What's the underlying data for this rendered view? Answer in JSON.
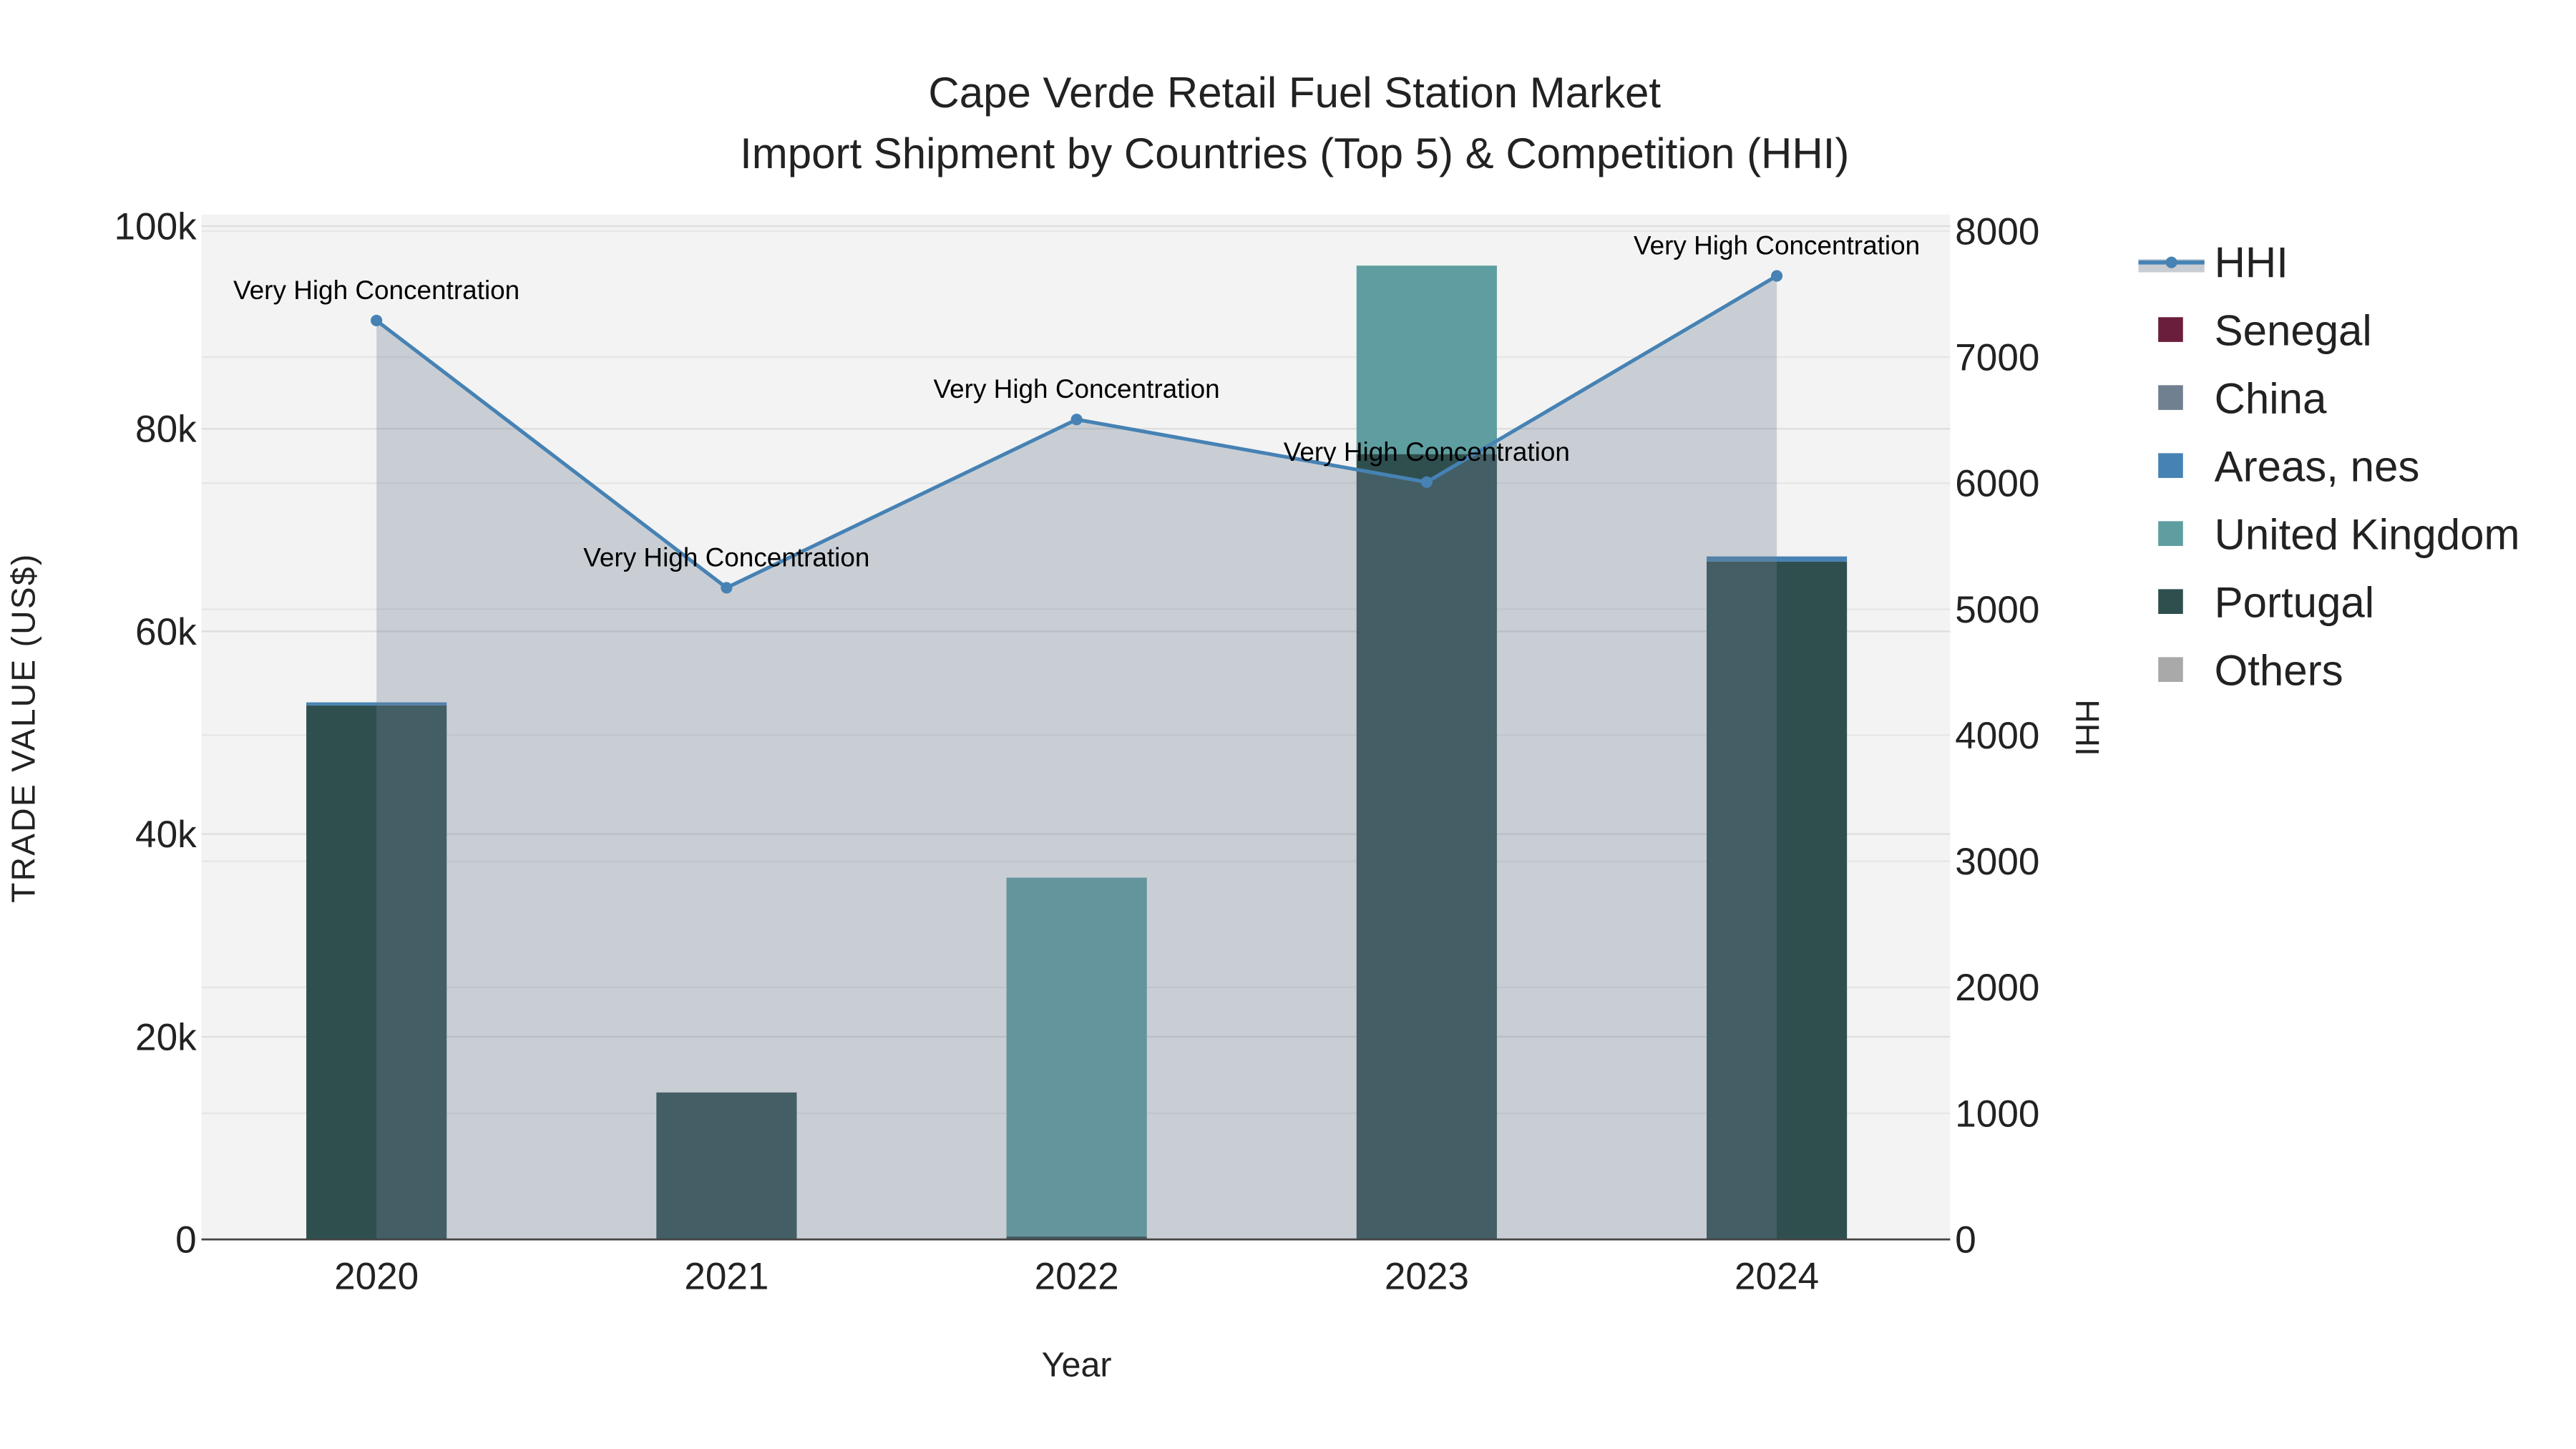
{
  "chart_data": {
    "type": "bar",
    "title": "Cape Verde Retail Fuel Station Market",
    "subtitle": "Import Shipment by Countries (Top 5) & Competition (HHI)",
    "xlabel": "Year",
    "ylabel": "TRADE VALUE (US$)",
    "y2label": "HHI",
    "categories": [
      "2020",
      "2021",
      "2022",
      "2023",
      "2024"
    ],
    "barmode": "stack",
    "ylim": [
      0,
      100000
    ],
    "y2lim": [
      0,
      8000
    ],
    "yticks": [
      0,
      20000,
      40000,
      60000,
      80000,
      100000
    ],
    "ytick_labels": [
      "0",
      "20k",
      "40k",
      "60k",
      "80k",
      "100k"
    ],
    "y2ticks": [
      0,
      1000,
      2000,
      3000,
      4000,
      5000,
      6000,
      7000,
      8000
    ],
    "y2tick_labels": [
      "0",
      "1000",
      "2000",
      "3000",
      "4000",
      "5000",
      "6000",
      "7000",
      "8000"
    ],
    "grid": true,
    "legend_position": "right",
    "series": [
      {
        "name": "Senegal",
        "color": "#6b1e3c",
        "values": [
          0,
          0,
          0,
          0,
          0
        ]
      },
      {
        "name": "China",
        "color": "#708090",
        "values": [
          0,
          0,
          0,
          0,
          0
        ]
      },
      {
        "name": "Portugal",
        "color": "#2f4f4f",
        "values": [
          52700,
          14500,
          300,
          77500,
          66900
        ]
      },
      {
        "name": "United Kingdom",
        "color": "#5f9ea0",
        "values": [
          0,
          0,
          35400,
          18600,
          0
        ]
      },
      {
        "name": "Areas, nes",
        "color": "#4682b4",
        "values": [
          300,
          0,
          0,
          0,
          500
        ]
      },
      {
        "name": "Others",
        "color": "#a9a9a9",
        "values": [
          0,
          0,
          0,
          0,
          0
        ]
      }
    ],
    "legend_order": [
      "HHI",
      "Senegal",
      "China",
      "Areas, nes",
      "United Kingdom",
      "Portugal",
      "Others"
    ],
    "hhi": {
      "name": "HHI",
      "color": "#4682b4",
      "values": [
        7290,
        5170,
        6505,
        6008,
        7644
      ],
      "annotations": [
        "Very High Concentration",
        "Very High Concentration",
        "Very High Concentration",
        "Very High Concentration",
        "Very High Concentration"
      ]
    }
  }
}
